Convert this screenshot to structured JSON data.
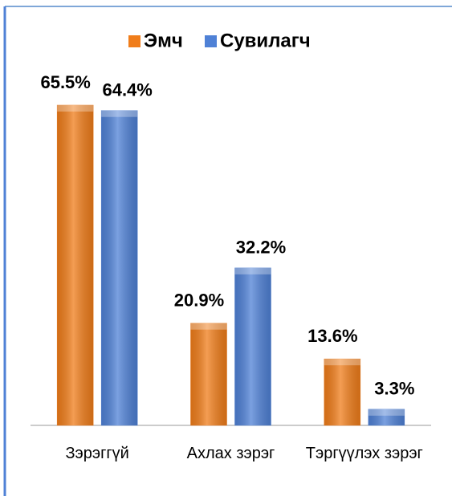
{
  "chart_data": {
    "type": "bar",
    "categories": [
      "Зэрэггүй",
      "Ахлах зэрэг",
      "Тэргүүлэх зэрэг"
    ],
    "series": [
      {
        "name": "Эмч",
        "color": "#f07d1a",
        "values": [
          65.5,
          20.9,
          13.6
        ],
        "value_labels": [
          "65.5%",
          "20.9%",
          "13.6%"
        ]
      },
      {
        "name": "Сувилагч",
        "color": "#4f81d6",
        "values": [
          64.4,
          32.2,
          3.3
        ],
        "value_labels": [
          "64.4%",
          "32.2%",
          "3.3%"
        ]
      }
    ],
    "legend": "top"
  }
}
